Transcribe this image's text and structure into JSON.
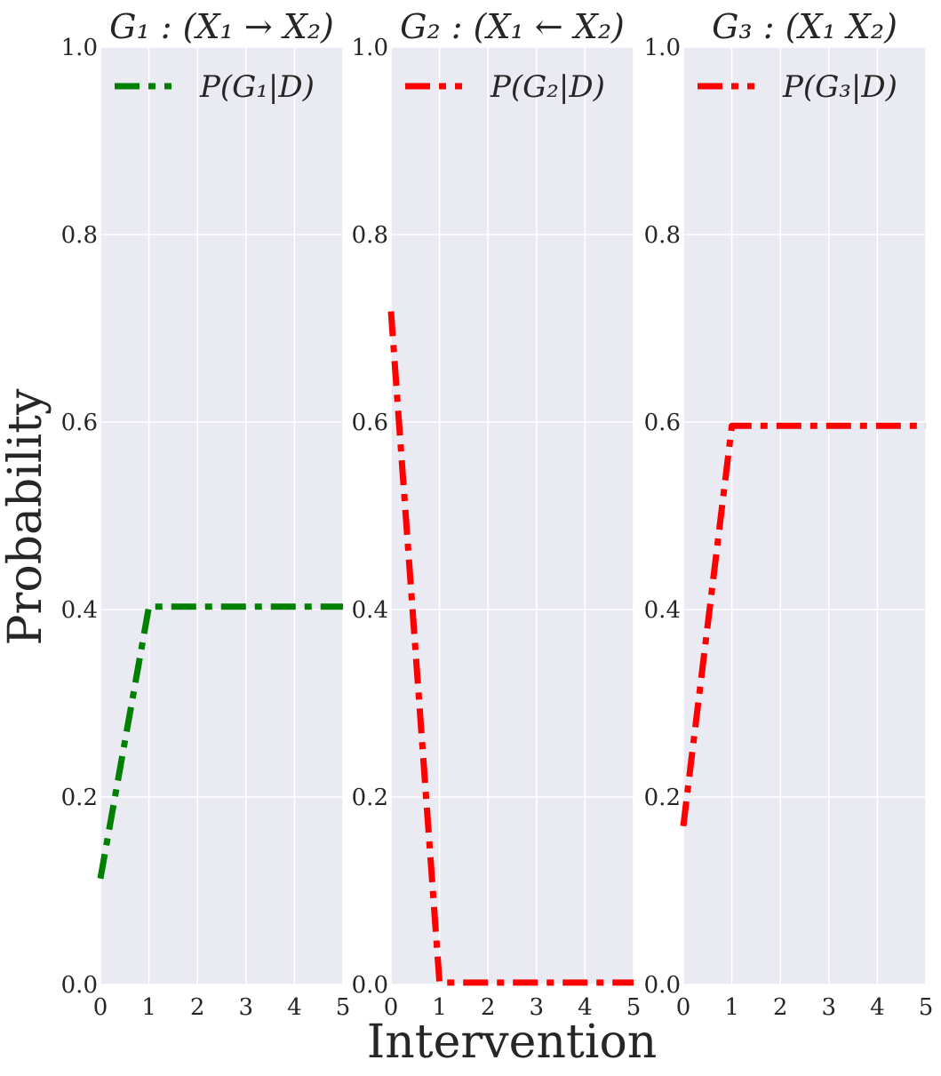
{
  "figure": {
    "xlabel": "Intervention",
    "ylabel": "Probability"
  },
  "chart_data": [
    {
      "type": "line",
      "title": "G₁ : (X₁ → X₂)",
      "x": [
        0,
        1,
        2,
        3,
        4,
        5
      ],
      "series": [
        {
          "name": "P(G₁|D)",
          "color": "#008000",
          "values": [
            0.113,
            0.403,
            0.403,
            0.403,
            0.403,
            0.403
          ]
        }
      ],
      "xlim": [
        0,
        5
      ],
      "ylim": [
        0,
        1
      ],
      "xticks": [
        "0",
        "1",
        "2",
        "3",
        "4",
        "5"
      ],
      "yticks": [
        "0.0",
        "0.2",
        "0.4",
        "0.6",
        "0.8",
        "1.0"
      ],
      "grid": true,
      "legend": "top-left"
    },
    {
      "type": "line",
      "title": "G₂ : (X₁ ← X₂)",
      "x": [
        0,
        1,
        2,
        3,
        4,
        5
      ],
      "series": [
        {
          "name": "P(G₂|D)",
          "color": "#ff0000",
          "values": [
            0.718,
            0.002,
            0.002,
            0.002,
            0.002,
            0.002
          ]
        }
      ],
      "xlim": [
        0,
        5
      ],
      "ylim": [
        0,
        1
      ],
      "xticks": [
        "0",
        "1",
        "2",
        "3",
        "4",
        "5"
      ],
      "yticks": [
        "0.0",
        "0.2",
        "0.4",
        "0.6",
        "0.8",
        "1.0"
      ],
      "grid": true,
      "legend": "top-left"
    },
    {
      "type": "line",
      "title": "G₃ : (X₁  X₂)",
      "x": [
        0,
        1,
        2,
        3,
        4,
        5
      ],
      "series": [
        {
          "name": "P(G₃|D)",
          "color": "#ff0000",
          "values": [
            0.169,
            0.596,
            0.596,
            0.596,
            0.596,
            0.596
          ]
        }
      ],
      "xlim": [
        0,
        5
      ],
      "ylim": [
        0,
        1
      ],
      "xticks": [
        "0",
        "1",
        "2",
        "3",
        "4",
        "5"
      ],
      "yticks": [
        "0.0",
        "0.2",
        "0.4",
        "0.6",
        "0.8",
        "1.0"
      ],
      "grid": true,
      "legend": "top-left"
    }
  ]
}
